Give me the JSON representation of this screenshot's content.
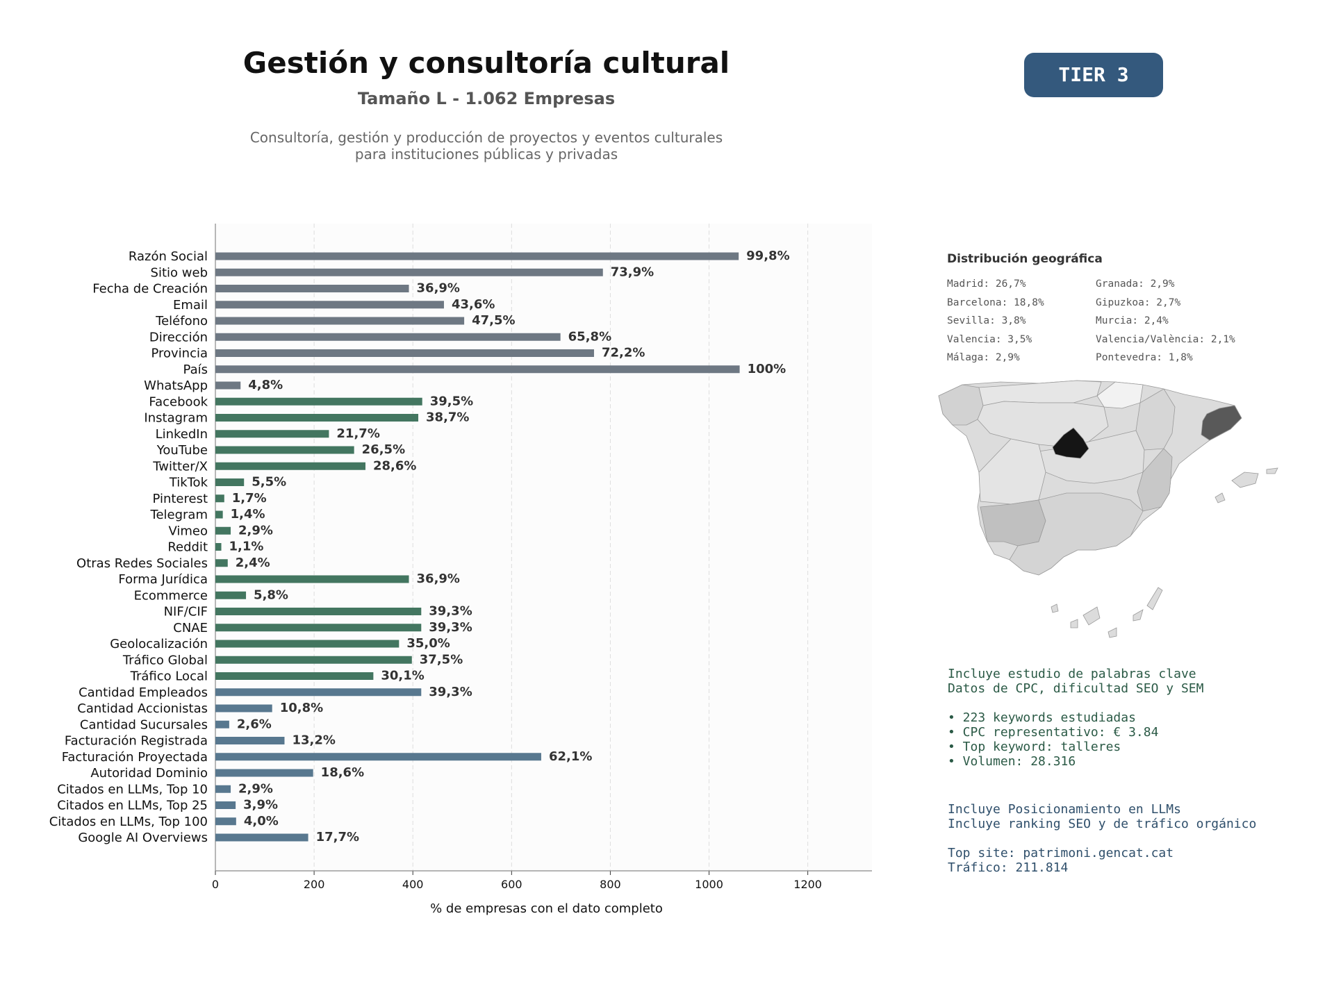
{
  "header": {
    "title": "Gestión y consultoría cultural",
    "subtitle": "Tamaño L - 1.062 Empresas",
    "description_line1": "Consultoría, gestión y producción de proyectos y eventos culturales",
    "description_line2": "para instituciones públicas y privadas",
    "tier": "TIER 3"
  },
  "colors": {
    "basic": "#6e7883",
    "social": "#437660",
    "financial": "#58788f",
    "tier_badge": "#34597d"
  },
  "chart_data": {
    "type": "bar",
    "orientation": "horizontal",
    "xlabel": "% de empresas con el dato completo",
    "xlim": [
      0,
      1330
    ],
    "xticks": [
      0,
      200,
      400,
      600,
      800,
      1000,
      1200
    ],
    "grid": "vertical dashed",
    "categories": [
      "Razón Social",
      "Sitio web",
      "Fecha de Creación",
      "Email",
      "Teléfono",
      "Dirección",
      "Provincia",
      "País",
      "WhatsApp",
      "Facebook",
      "Instagram",
      "LinkedIn",
      "YouTube",
      "Twitter/X",
      "TikTok",
      "Pinterest",
      "Telegram",
      "Vimeo",
      "Reddit",
      "Otras Redes Sociales",
      "Forma Jurídica",
      "Ecommerce",
      "NIF/CIF",
      "CNAE",
      "Geolocalización",
      "Tráfico Global",
      "Tráfico Local",
      "Cantidad Empleados",
      "Cantidad Accionistas",
      "Cantidad Sucursales",
      "Facturación Registrada",
      "Facturación Proyectada",
      "Autoridad Dominio",
      "Citados en LLMs, Top 10",
      "Citados en LLMs, Top 25",
      "Citados en LLMs, Top 100",
      "Google AI Overviews"
    ],
    "values": [
      1060,
      785,
      392,
      463,
      504,
      699,
      767,
      1062,
      51,
      419,
      411,
      230,
      281,
      304,
      58,
      18,
      15,
      31,
      12,
      25,
      392,
      62,
      417,
      417,
      372,
      398,
      320,
      417,
      115,
      28,
      140,
      660,
      198,
      31,
      41,
      42,
      188
    ],
    "labels": [
      "99,8%",
      "73,9%",
      "36,9%",
      "43,6%",
      "47,5%",
      "65,8%",
      "72,2%",
      "100%",
      "4,8%",
      "39,5%",
      "38,7%",
      "21,7%",
      "26,5%",
      "28,6%",
      "5,5%",
      "1,7%",
      "1,4%",
      "2,9%",
      "1,1%",
      "2,4%",
      "36,9%",
      "5,8%",
      "39,3%",
      "39,3%",
      "35,0%",
      "37,5%",
      "30,1%",
      "39,3%",
      "10,8%",
      "2,6%",
      "13,2%",
      "62,1%",
      "18,6%",
      "2,9%",
      "3,9%",
      "4,0%",
      "17,7%"
    ],
    "groups": [
      "basic",
      "basic",
      "basic",
      "basic",
      "basic",
      "basic",
      "basic",
      "basic",
      "basic",
      "social",
      "social",
      "social",
      "social",
      "social",
      "social",
      "social",
      "social",
      "social",
      "social",
      "social",
      "social",
      "social",
      "social",
      "social",
      "social",
      "social",
      "social",
      "financial",
      "financial",
      "financial",
      "financial",
      "financial",
      "financial",
      "financial",
      "financial",
      "financial",
      "financial"
    ]
  },
  "geo": {
    "title": "Distribución geográfica",
    "col1": [
      "Madrid: 26,7%",
      "Barcelona: 18,8%",
      "Sevilla: 3,8%",
      "Valencia: 3,5%",
      "Málaga: 2,9%"
    ],
    "col2": [
      "Granada: 2,9%",
      "Gipuzkoa: 2,7%",
      "Murcia: 2,4%",
      "Valencia/València: 2,1%",
      "Pontevedra: 1,8%"
    ]
  },
  "keywords": {
    "line1": "Incluye estudio de palabras clave",
    "line2": "Datos de CPC, dificultad SEO y SEM",
    "bullet1": "• 223 keywords estudiadas",
    "bullet2": "• CPC representativo: € 3.84",
    "bullet3": "• Top keyword: talleres",
    "bullet4": "• Volumen: 28.316"
  },
  "llm": {
    "line1": "Incluye Posicionamiento en LLMs",
    "line2": "Incluye ranking SEO y de tráfico orgánico",
    "line3": "Top site: patrimoni.gencat.cat",
    "line4": "Tráfico: 211.814"
  }
}
